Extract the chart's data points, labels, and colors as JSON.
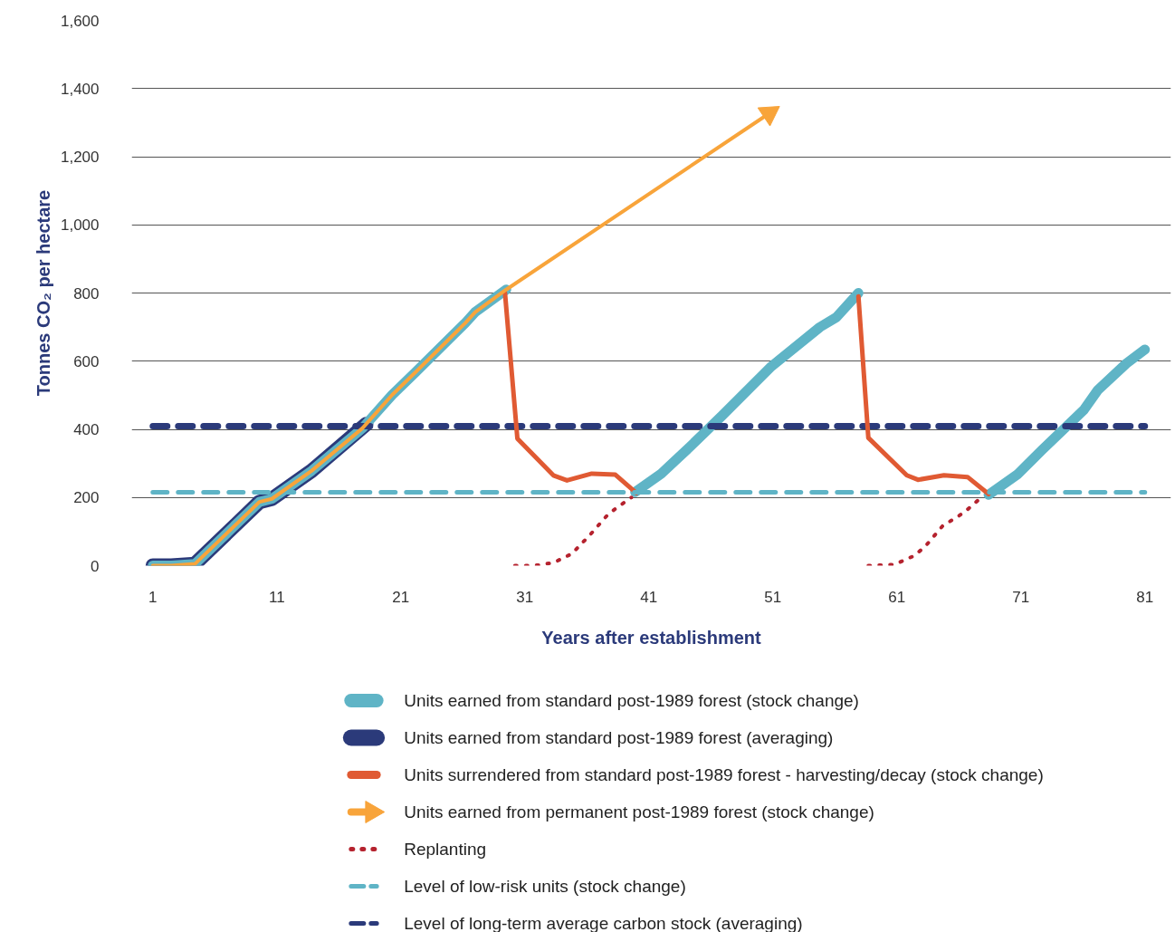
{
  "chart_data": {
    "type": "line",
    "xlabel": "Years after establishment",
    "ylabel": "Tonnes CO₂ per hectare",
    "xlim": [
      -0.7,
      83.1
    ],
    "ylim": [
      0,
      1600
    ],
    "xticks": [
      1,
      11,
      21,
      31,
      41,
      51,
      61,
      71,
      81
    ],
    "yticks": [
      0,
      {
        "value": 200,
        "label": "200"
      },
      {
        "value": 400,
        "label": "400"
      },
      {
        "value": 600,
        "label": "600"
      },
      {
        "value": 800,
        "label": "800"
      },
      {
        "value": 1000,
        "label": "1,000"
      },
      {
        "value": 1200,
        "label": "1,200"
      },
      {
        "value": 1400,
        "label": "1,400"
      },
      {
        "value": 1600,
        "label": "1,600"
      }
    ],
    "grid": "y",
    "legend": "bottom",
    "series": [
      {
        "name": "Units earned from standard post-1989 forest (stock change)",
        "color": "#5fb4c6",
        "line_style": "solid",
        "x": [
          1,
          2.5,
          4.4,
          9.6,
          10.6,
          13.8,
          17.9,
          20.3,
          22.2,
          26.2,
          27,
          29.5,
          35,
          39.9,
          42,
          44.3,
          46.9,
          50.8,
          54.8,
          56.1,
          57.9,
          63,
          68.4,
          70.7,
          72.7,
          76.1,
          77.2,
          79.5,
          81
        ],
        "values": [
          0,
          0,
          5,
          187,
          196,
          278,
          403,
          501,
          568,
          712,
          744,
          810,
          null,
          216,
          270,
          348,
          440,
          582,
          700,
          728,
          800,
          null,
          208,
          267,
          339,
          458,
          515,
          593,
          634
        ]
      },
      {
        "name": "Units earned from standard post-1989 forest (averaging)",
        "color": "#2b3a7a",
        "line_style": "solid",
        "x": [
          1,
          2.5,
          4.4,
          9.6,
          10.6,
          13.8,
          18.2
        ],
        "values": [
          0,
          0,
          5,
          187,
          196,
          278,
          415
        ]
      },
      {
        "name": "Units surrendered from standard post-1989 forest - harvesting/decay (stock change)",
        "color": "#e05a33",
        "line_style": "solid",
        "x": [
          29.4,
          30.4,
          33.3,
          34.4,
          36.4,
          38.3,
          40,
          50,
          57.9,
          58.7,
          61.8,
          62.7,
          64.8,
          66.7,
          68.4
        ],
        "values": [
          800,
          373,
          265,
          250,
          270,
          267,
          213,
          null,
          790,
          375,
          265,
          252,
          265,
          260,
          210
        ]
      },
      {
        "name": "Units earned from permanent post-1989 forest (stock change)",
        "color": "#f8a43a",
        "line_style": "solid",
        "x": [
          1,
          2.5,
          4.4,
          9.6,
          10.6,
          13.8,
          17.9,
          20.3,
          22.2,
          26.2,
          27,
          29.5,
          50.7
        ],
        "values": [
          0,
          0,
          5,
          187,
          196,
          278,
          403,
          501,
          568,
          712,
          744,
          810,
          1327
        ]
      },
      {
        "name": "Replanting",
        "color": "#b5222e",
        "line_style": "dotted",
        "x": [
          30.2,
          31.3,
          32.3,
          33.4,
          34.8,
          36.3,
          37.7,
          38.5,
          39.6,
          50,
          58.7,
          60.8,
          62.4,
          63.3,
          64.7,
          66,
          66.8,
          67.8
        ],
        "values": [
          0,
          0,
          2,
          10,
          35,
          92,
          150,
          172,
          200,
          null,
          0,
          3,
          29,
          57,
          117,
          146,
          168,
          200
        ]
      },
      {
        "name": "Level of low-risk units (stock change)",
        "color": "#5fb4c6",
        "line_style": "dashed",
        "x": [
          1,
          81
        ],
        "values": [
          215,
          215
        ]
      },
      {
        "name": "Level of long-term average carbon stock (averaging)",
        "color": "#2b3a7a",
        "line_style": "dashed",
        "x": [
          1,
          81
        ],
        "values": [
          409,
          409
        ]
      }
    ]
  }
}
